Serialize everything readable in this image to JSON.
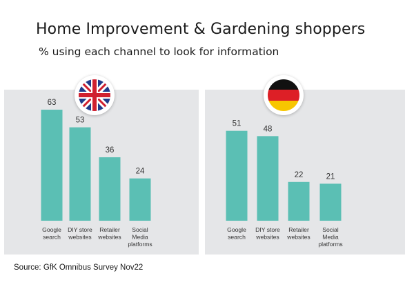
{
  "header": {
    "title": "Home Improvement & Gardening shoppers",
    "subtitle": "% using each channel to look for information"
  },
  "footer": {
    "source": "Source: GfK Omnibus Survey Nov22"
  },
  "colors": {
    "bar": "#5bbfb4",
    "panel_background": "#e5e6e8"
  },
  "icons": {
    "uk": "uk-flag-icon",
    "de": "germany-flag-icon"
  },
  "chart_data": [
    {
      "type": "bar",
      "title": "",
      "xlabel": "",
      "ylabel": "",
      "ylim": [
        0,
        70
      ],
      "grid": false,
      "categories": [
        [
          "Google",
          "search"
        ],
        [
          "DIY store",
          "websites"
        ],
        [
          "Retailer",
          "websites"
        ],
        [
          "Social",
          "Media",
          "platforms"
        ]
      ],
      "values": [
        63,
        53,
        36,
        24
      ]
    },
    {
      "type": "bar",
      "title": "",
      "xlabel": "",
      "ylabel": "",
      "ylim": [
        0,
        70
      ],
      "grid": false,
      "categories": [
        [
          "Google",
          "search"
        ],
        [
          "DIY store",
          "websites"
        ],
        [
          "Retailer",
          "websites"
        ],
        [
          "Social",
          "Media",
          "platforms"
        ]
      ],
      "values": [
        51,
        48,
        22,
        21
      ]
    }
  ]
}
